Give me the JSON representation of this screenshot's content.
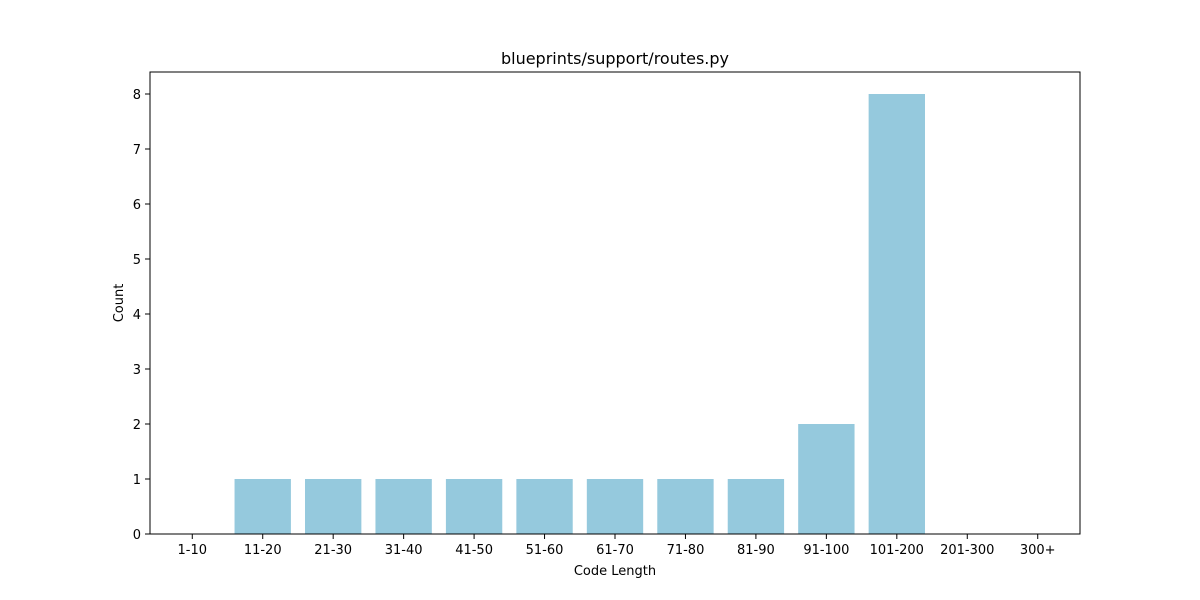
{
  "chart_data": {
    "type": "bar",
    "title": "blueprints/support/routes.py",
    "xlabel": "Code Length",
    "ylabel": "Count",
    "categories": [
      "1-10",
      "11-20",
      "21-30",
      "31-40",
      "41-50",
      "51-60",
      "61-70",
      "71-80",
      "81-90",
      "91-100",
      "101-200",
      "201-300",
      "300+"
    ],
    "values": [
      0,
      1,
      1,
      1,
      1,
      1,
      1,
      1,
      1,
      2,
      8,
      0,
      0
    ],
    "ylim": [
      0,
      8.4
    ],
    "yticks": [
      0,
      1,
      2,
      3,
      4,
      5,
      6,
      7,
      8
    ],
    "bar_color": "#95c9dd",
    "grid": false,
    "legend": "none"
  }
}
